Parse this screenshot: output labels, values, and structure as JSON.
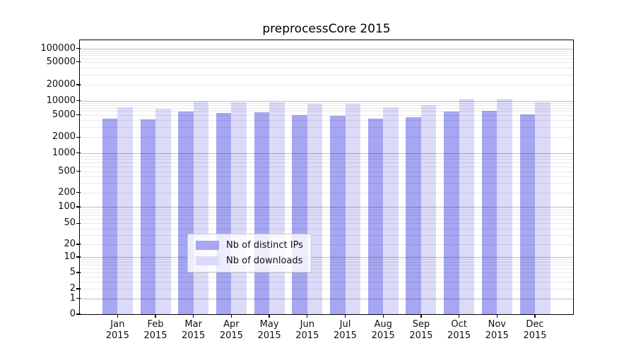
{
  "title": "preprocessCore 2015",
  "colors": {
    "bar_distinct_ips": "#a6a6f2",
    "bar_downloads": "#dbdbf9",
    "grid_major": "#bdbdbd",
    "grid_minor": "#e8e8e8",
    "frame": "#000000",
    "text": "#111111"
  },
  "chart_data": {
    "type": "bar",
    "title": "preprocessCore 2015",
    "categories": [
      "Jan 2015",
      "Feb 2015",
      "Mar 2015",
      "Apr 2015",
      "May 2015",
      "Jun 2015",
      "Jul 2015",
      "Aug 2015",
      "Sep 2015",
      "Oct 2015",
      "Nov 2015",
      "Dec 2015"
    ],
    "series": [
      {
        "name": "Nb of distinct IPs",
        "color": "#a6a6f2",
        "values": [
          4250,
          4150,
          5900,
          5500,
          5600,
          4950,
          4850,
          4250,
          4600,
          5800,
          6000,
          5200
        ]
      },
      {
        "name": "Nb of downloads",
        "color": "#dbdbf9",
        "values": [
          7250,
          6800,
          9450,
          9250,
          9350,
          8700,
          8650,
          7300,
          8050,
          10750,
          10950,
          9200
        ]
      }
    ],
    "yscale": "symlog",
    "ylim": [
      0,
      100000
    ],
    "y_tick_labels": [
      "0",
      "1",
      "2",
      "5",
      "10",
      "20",
      "50",
      "100",
      "200",
      "500",
      "1000",
      "2000",
      "5000",
      "10000",
      "20000",
      "50000",
      "100000"
    ],
    "xlabel": "",
    "ylabel": "",
    "grid": "horizontal, major and minor",
    "legend_position": "lower center"
  }
}
